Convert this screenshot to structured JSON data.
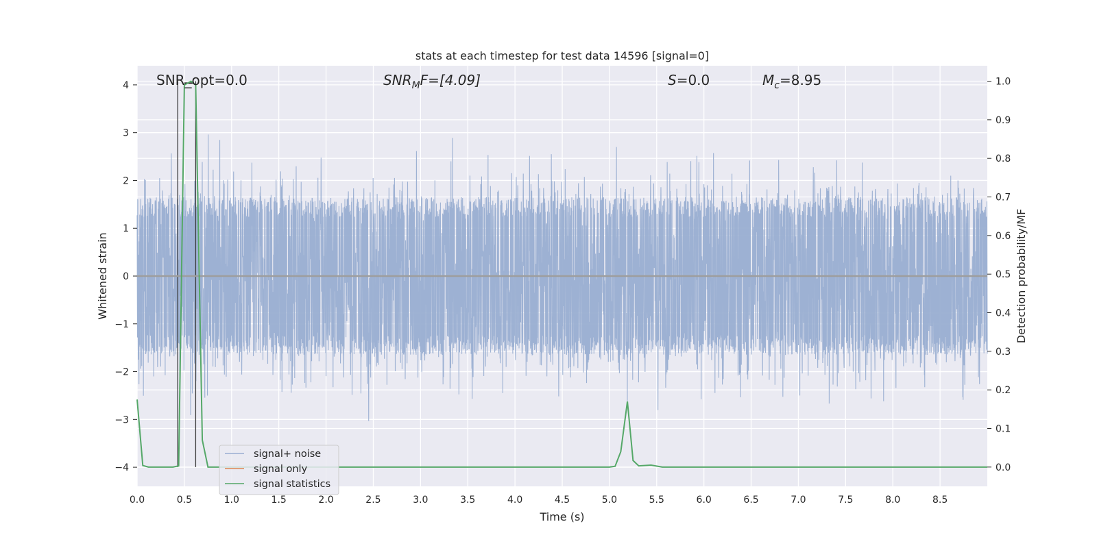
{
  "chart_data": {
    "type": "line",
    "title": "stats at each timestep for test data 14596 [signal=0]",
    "xlabel": "Time (s)",
    "ylabel_left": "Whitened strain",
    "ylabel_right": "Detection probability/MF",
    "xlim": [
      0.0,
      9.0
    ],
    "ylim_left": [
      -4.4,
      4.4
    ],
    "ylim_right": [
      -0.05,
      1.04
    ],
    "x_ticks": [
      0.0,
      0.5,
      1.0,
      1.5,
      2.0,
      2.5,
      3.0,
      3.5,
      4.0,
      4.5,
      5.0,
      5.5,
      6.0,
      6.5,
      7.0,
      7.5,
      8.0,
      8.5
    ],
    "x_tick_labels": [
      "0.0",
      "0.5",
      "1.0",
      "1.5",
      "2.0",
      "2.5",
      "3.0",
      "3.5",
      "4.0",
      "4.5",
      "5.0",
      "5.5",
      "6.0",
      "6.5",
      "7.0",
      "7.5",
      "8.0",
      "8.5"
    ],
    "y_left_ticks": [
      4,
      3,
      2,
      1,
      0,
      -1,
      -2,
      -3,
      -4
    ],
    "y_left_tick_labels": [
      "4",
      "3",
      "2",
      "1",
      "0",
      "−1",
      "−2",
      "−3",
      "−4"
    ],
    "y_right_ticks": [
      1.0,
      0.9,
      0.8,
      0.7,
      0.6,
      0.5,
      0.4,
      0.3,
      0.2,
      0.1,
      0.0
    ],
    "y_right_tick_labels": [
      "1.0",
      "0.9",
      "0.8",
      "0.7",
      "0.6",
      "0.5",
      "0.4",
      "0.3",
      "0.2",
      "0.1",
      "0.0"
    ],
    "grid": true,
    "legend_position": "lower-left",
    "annotations": {
      "snr_opt": "SNR_opt=0.0",
      "snr_mf_sym": "SNR",
      "snr_mf_sub": "M",
      "snr_mf_rest": "F=[4.09]",
      "s_sym": "S",
      "s_rest": "=0.0",
      "mc_sym": "M",
      "mc_sub": "c",
      "mc_rest": "=8.95"
    },
    "vertical_markers_x": [
      0.43,
      0.62
    ],
    "marker_bar_x": [
      0.5,
      0.6
    ],
    "marker_bar_y": 0.995,
    "series": [
      {
        "name": "signal+ noise",
        "color": "#99aed1",
        "axis": "left",
        "typical_amplitude": 1.65,
        "peak_amplitude": 4.0,
        "samples_per_second": 512,
        "x_start": 0.0,
        "x_end": 9.0
      },
      {
        "name": "signal only",
        "color": "#dd8452",
        "axis": "left",
        "x": [
          0.0,
          9.0
        ],
        "y": [
          0.0,
          0.0
        ]
      },
      {
        "name": "signal statistics",
        "color": "#55a868",
        "axis": "right",
        "x": [
          0.0,
          0.06,
          0.12,
          0.38,
          0.44,
          0.5,
          0.57,
          0.62,
          0.69,
          0.75,
          1.0,
          2.0,
          3.0,
          4.0,
          5.0,
          5.06,
          5.12,
          5.19,
          5.25,
          5.31,
          5.44,
          5.56,
          6.0,
          7.0,
          8.0,
          9.0
        ],
        "y": [
          0.175,
          0.004,
          0.0,
          0.0,
          0.003,
          0.99,
          1.0,
          0.99,
          0.07,
          0.0,
          0.0,
          0.0,
          0.0,
          0.0,
          0.0,
          0.002,
          0.04,
          0.17,
          0.017,
          0.003,
          0.005,
          0.0,
          0.0,
          0.0,
          0.0,
          0.0
        ]
      }
    ]
  }
}
